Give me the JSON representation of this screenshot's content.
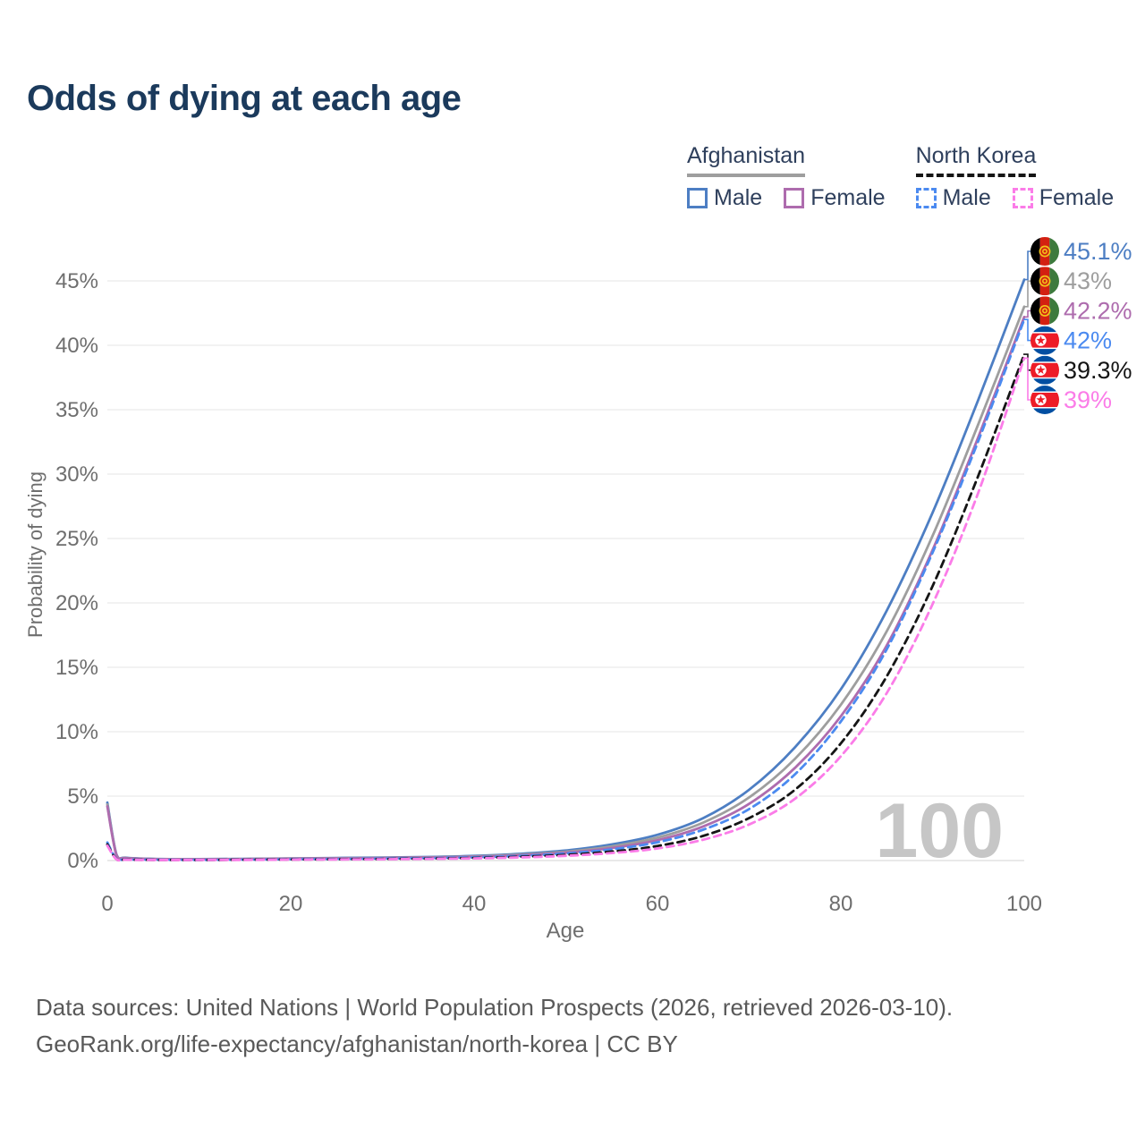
{
  "title": "Odds of dying at each age",
  "legend": {
    "groups": [
      {
        "label": "Afghanistan",
        "underline_style": "solid",
        "underline_color": "#9e9e9e",
        "items": [
          {
            "label": "Male",
            "color": "#4d7ec3",
            "dashed": false
          },
          {
            "label": "Female",
            "color": "#ae6cae",
            "dashed": false
          }
        ]
      },
      {
        "label": "North Korea",
        "underline_style": "dashed",
        "underline_color": "#151515",
        "items": [
          {
            "label": "Male",
            "color": "#4b8af0",
            "dashed": true
          },
          {
            "label": "Female",
            "color": "#fb7ce8",
            "dashed": true
          }
        ]
      }
    ]
  },
  "watermark": "100",
  "footer": {
    "line1": "Data sources: United Nations | World Population Prospects (2026, retrieved 2026-03-10).",
    "line2": "GeoRank.org/life-expectancy/afghanistan/north-korea | CC BY"
  },
  "chart_data": {
    "type": "line",
    "title": "Odds of dying at each age",
    "xlabel": "Age",
    "ylabel": "Probability of dying",
    "xlim": [
      0,
      100
    ],
    "ylim": [
      0,
      47
    ],
    "x_ticks": [
      0,
      20,
      40,
      60,
      80,
      100
    ],
    "y_ticks": [
      0,
      5,
      10,
      15,
      20,
      25,
      30,
      35,
      40,
      45
    ],
    "y_tick_suffix": "%",
    "grid": true,
    "legend_position": "top-right",
    "ages": [
      0,
      1,
      2,
      5,
      10,
      15,
      20,
      25,
      30,
      35,
      40,
      45,
      50,
      55,
      60,
      65,
      70,
      75,
      80,
      85,
      90,
      95,
      100
    ],
    "series": [
      {
        "name": "Afghanistan Male",
        "country": "afghanistan",
        "sex": "male",
        "color": "#4d7ec3",
        "dashed": false,
        "flag": "af",
        "end_label": "45.1%",
        "end_value": 45.1,
        "values": [
          4.5,
          0.45,
          0.22,
          0.13,
          0.11,
          0.13,
          0.17,
          0.2,
          0.23,
          0.28,
          0.36,
          0.52,
          0.78,
          1.25,
          2.0,
          3.3,
          5.5,
          8.8,
          13.3,
          19.4,
          27.0,
          35.8,
          45.1
        ]
      },
      {
        "name": "Afghanistan Both sexes",
        "country": "afghanistan",
        "sex": "both",
        "color": "#9e9e9e",
        "dashed": false,
        "flag": "af",
        "end_label": "43%",
        "end_value": 43.0,
        "values": [
          4.35,
          0.42,
          0.2,
          0.12,
          0.1,
          0.12,
          0.15,
          0.18,
          0.21,
          0.25,
          0.32,
          0.46,
          0.69,
          1.1,
          1.78,
          2.95,
          4.9,
          7.9,
          12.1,
          17.8,
          25.2,
          33.9,
          43.0
        ]
      },
      {
        "name": "Afghanistan Female",
        "country": "afghanistan",
        "sex": "female",
        "color": "#ae6cae",
        "dashed": false,
        "flag": "af",
        "end_label": "42.2%",
        "end_value": 42.2,
        "values": [
          4.2,
          0.4,
          0.19,
          0.11,
          0.09,
          0.11,
          0.14,
          0.16,
          0.19,
          0.23,
          0.29,
          0.41,
          0.61,
          0.97,
          1.58,
          2.65,
          4.4,
          7.2,
          11.2,
          16.7,
          24.1,
          32.9,
          42.2
        ]
      },
      {
        "name": "North Korea Male",
        "country": "north-korea",
        "sex": "male",
        "color": "#4b8af0",
        "dashed": true,
        "flag": "nk",
        "end_label": "42%",
        "end_value": 42.0,
        "values": [
          1.4,
          0.12,
          0.08,
          0.06,
          0.05,
          0.07,
          0.1,
          0.12,
          0.15,
          0.19,
          0.25,
          0.36,
          0.55,
          0.87,
          1.42,
          2.4,
          4.0,
          6.7,
          10.8,
          16.4,
          23.9,
          32.6,
          42.0
        ]
      },
      {
        "name": "North Korea Both sexes",
        "country": "north-korea",
        "sex": "both",
        "color": "#151515",
        "dashed": true,
        "flag": "nk",
        "end_label": "39.3%",
        "end_value": 39.3,
        "values": [
          1.25,
          0.1,
          0.07,
          0.05,
          0.04,
          0.06,
          0.08,
          0.1,
          0.12,
          0.15,
          0.2,
          0.29,
          0.44,
          0.7,
          1.13,
          1.92,
          3.3,
          5.5,
          9.1,
          14.3,
          21.3,
          29.9,
          39.3
        ]
      },
      {
        "name": "North Korea Female",
        "country": "north-korea",
        "sex": "female",
        "color": "#fb7ce8",
        "dashed": true,
        "flag": "nk",
        "end_label": "39%",
        "end_value": 39.0,
        "values": [
          1.15,
          0.09,
          0.06,
          0.04,
          0.04,
          0.05,
          0.07,
          0.08,
          0.1,
          0.13,
          0.17,
          0.24,
          0.37,
          0.58,
          0.94,
          1.62,
          2.8,
          4.8,
          8.1,
          13.0,
          19.9,
          28.6,
          39.0
        ]
      }
    ]
  }
}
